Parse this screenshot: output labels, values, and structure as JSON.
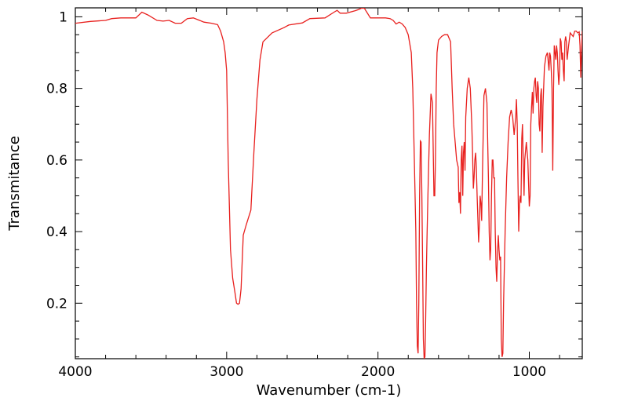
{
  "chart_data": {
    "type": "line",
    "title": "",
    "xlabel": "Wavenumber (cm-1)",
    "ylabel": "Transmitance",
    "xlim": [
      4000,
      650
    ],
    "ylim": [
      0.045,
      1.025
    ],
    "x_reversed": true,
    "grid": false,
    "legend": "none",
    "x_ticks": [
      4000,
      3000,
      2000,
      1000
    ],
    "x_tick_labels": [
      "4000",
      "3000",
      "2000",
      "1000"
    ],
    "y_ticks": [
      0.2,
      0.4,
      0.6,
      0.8,
      1.0
    ],
    "y_tick_labels": [
      "0.2",
      "0.4",
      "0.6",
      "0.8",
      "1"
    ],
    "series": [
      {
        "color": "#e8201e",
        "x": [
          4000,
          3900,
          3800,
          3760,
          3700,
          3600,
          3560,
          3520,
          3460,
          3420,
          3380,
          3340,
          3300,
          3260,
          3220,
          3150,
          3100,
          3060,
          3040,
          3020,
          3010,
          3000,
          2990,
          2975,
          2960,
          2945,
          2935,
          2925,
          2915,
          2905,
          2890,
          2870,
          2855,
          2840,
          2820,
          2800,
          2780,
          2760,
          2700,
          2620,
          2590,
          2500,
          2450,
          2350,
          2290,
          2270,
          2250,
          2210,
          2150,
          2130,
          2110,
          2090,
          2050,
          2000,
          1950,
          1920,
          1900,
          1880,
          1860,
          1840,
          1820,
          1800,
          1780,
          1770,
          1760,
          1750,
          1745,
          1740,
          1735,
          1730,
          1725,
          1720,
          1715,
          1710,
          1705,
          1700,
          1695,
          1690,
          1685,
          1680,
          1675,
          1670,
          1660,
          1650,
          1640,
          1630,
          1625,
          1620,
          1615,
          1610,
          1600,
          1580,
          1560,
          1540,
          1520,
          1510,
          1500,
          1490,
          1480,
          1470,
          1465,
          1460,
          1455,
          1450,
          1445,
          1440,
          1435,
          1430,
          1425,
          1420,
          1410,
          1400,
          1390,
          1380,
          1375,
          1370,
          1365,
          1360,
          1355,
          1350,
          1345,
          1340,
          1335,
          1330,
          1325,
          1320,
          1315,
          1310,
          1300,
          1290,
          1280,
          1270,
          1265,
          1260,
          1255,
          1250,
          1245,
          1240,
          1235,
          1230,
          1225,
          1220,
          1215,
          1210,
          1205,
          1200,
          1195,
          1190,
          1185,
          1180,
          1175,
          1170,
          1160,
          1150,
          1140,
          1130,
          1120,
          1110,
          1100,
          1090,
          1085,
          1080,
          1075,
          1070,
          1065,
          1060,
          1055,
          1050,
          1045,
          1040,
          1035,
          1030,
          1020,
          1010,
          1000,
          995,
          990,
          985,
          980,
          975,
          970,
          965,
          960,
          955,
          950,
          945,
          940,
          935,
          930,
          925,
          920,
          915,
          910,
          900,
          890,
          880,
          870,
          865,
          860,
          855,
          850,
          845,
          840,
          835,
          830,
          825,
          820,
          815,
          810,
          805,
          800,
          795,
          790,
          785,
          780,
          775,
          770,
          765,
          760,
          755,
          750,
          740,
          730,
          720,
          710,
          700,
          690,
          680,
          670,
          665,
          660,
          655,
          650
        ],
        "y": [
          0.982,
          0.987,
          0.99,
          0.995,
          0.997,
          0.997,
          1.013,
          1.005,
          0.99,
          0.988,
          0.99,
          0.982,
          0.982,
          0.995,
          0.997,
          0.985,
          0.982,
          0.978,
          0.96,
          0.93,
          0.9,
          0.85,
          0.6,
          0.35,
          0.27,
          0.23,
          0.2,
          0.197,
          0.2,
          0.24,
          0.39,
          0.42,
          0.44,
          0.46,
          0.62,
          0.77,
          0.88,
          0.93,
          0.955,
          0.97,
          0.977,
          0.983,
          0.995,
          0.997,
          1.013,
          1.018,
          1.01,
          1.01,
          1.017,
          1.02,
          1.024,
          1.024,
          0.997,
          0.997,
          0.997,
          0.995,
          0.99,
          0.98,
          0.985,
          0.98,
          0.97,
          0.95,
          0.9,
          0.8,
          0.6,
          0.4,
          0.2,
          0.08,
          0.06,
          0.2,
          0.5,
          0.653,
          0.65,
          0.5,
          0.3,
          0.1,
          0.045,
          0.05,
          0.15,
          0.3,
          0.4,
          0.5,
          0.67,
          0.785,
          0.76,
          0.5,
          0.5,
          0.6,
          0.8,
          0.9,
          0.935,
          0.945,
          0.95,
          0.95,
          0.93,
          0.8,
          0.7,
          0.65,
          0.6,
          0.58,
          0.48,
          0.51,
          0.45,
          0.6,
          0.64,
          0.5,
          0.62,
          0.65,
          0.57,
          0.72,
          0.8,
          0.83,
          0.8,
          0.7,
          0.62,
          0.52,
          0.55,
          0.6,
          0.62,
          0.58,
          0.5,
          0.44,
          0.37,
          0.42,
          0.5,
          0.48,
          0.43,
          0.55,
          0.78,
          0.8,
          0.76,
          0.55,
          0.4,
          0.32,
          0.35,
          0.5,
          0.6,
          0.6,
          0.55,
          0.55,
          0.4,
          0.3,
          0.26,
          0.34,
          0.39,
          0.35,
          0.32,
          0.33,
          0.1,
          0.05,
          0.06,
          0.2,
          0.4,
          0.55,
          0.65,
          0.72,
          0.74,
          0.72,
          0.67,
          0.72,
          0.77,
          0.7,
          0.55,
          0.4,
          0.48,
          0.5,
          0.48,
          0.66,
          0.7,
          0.6,
          0.5,
          0.6,
          0.65,
          0.6,
          0.47,
          0.5,
          0.7,
          0.75,
          0.79,
          0.73,
          0.8,
          0.82,
          0.83,
          0.78,
          0.76,
          0.82,
          0.8,
          0.7,
          0.68,
          0.78,
          0.8,
          0.62,
          0.75,
          0.86,
          0.89,
          0.9,
          0.85,
          0.9,
          0.89,
          0.85,
          0.8,
          0.57,
          0.8,
          0.92,
          0.9,
          0.88,
          0.92,
          0.9,
          0.85,
          0.81,
          0.85,
          0.94,
          0.93,
          0.88,
          0.9,
          0.85,
          0.82,
          0.93,
          0.945,
          0.93,
          0.88,
          0.92,
          0.955,
          0.95,
          0.945,
          0.96,
          0.96,
          0.955,
          0.958,
          0.92,
          0.83,
          0.9,
          0.96
        ]
      }
    ]
  }
}
